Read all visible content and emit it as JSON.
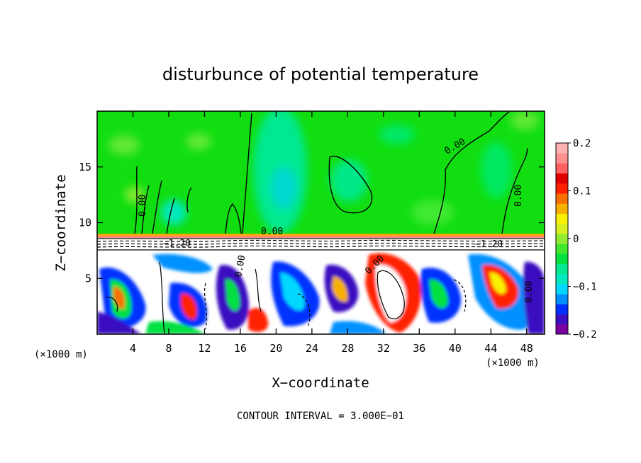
{
  "chart_data": {
    "type": "heatmap",
    "title": "disturbunce of potential temperature",
    "xlabel": "X−coordinate",
    "ylabel": "Z−coordinate",
    "x_unit": "(×1000 m)",
    "x_ticks": [
      "4",
      "8",
      "12",
      "16",
      "20",
      "24",
      "28",
      "32",
      "36",
      "40",
      "44",
      "48"
    ],
    "y_ticks": [
      "5",
      "10",
      "15"
    ],
    "xlim": [
      0,
      50
    ],
    "ylim": [
      0,
      20
    ],
    "contour_interval_text": "CONTOUR INTERVAL = 3.000E−01",
    "contour_labels": [
      "0.00",
      "0.00",
      "0.00",
      "0.00",
      "0.00",
      "0.00",
      "0.00",
      "−1.20",
      "−1.20"
    ],
    "colorbar": {
      "range": [
        -0.2,
        0.2
      ],
      "tick_labels": [
        "0.2",
        "0.1",
        "0",
        "−0.1",
        "−0.2"
      ],
      "colors": [
        "#7a00a0",
        "#3a10c0",
        "#0030ff",
        "#0090ff",
        "#00d8ff",
        "#00e8c0",
        "#00e890",
        "#00e040",
        "#40e830",
        "#90ec30",
        "#d8f020",
        "#f8f000",
        "#f8b000",
        "#f87000",
        "#ff2000",
        "#e00000",
        "#ff6060",
        "#ff9090",
        "#ffb0b0"
      ]
    }
  }
}
